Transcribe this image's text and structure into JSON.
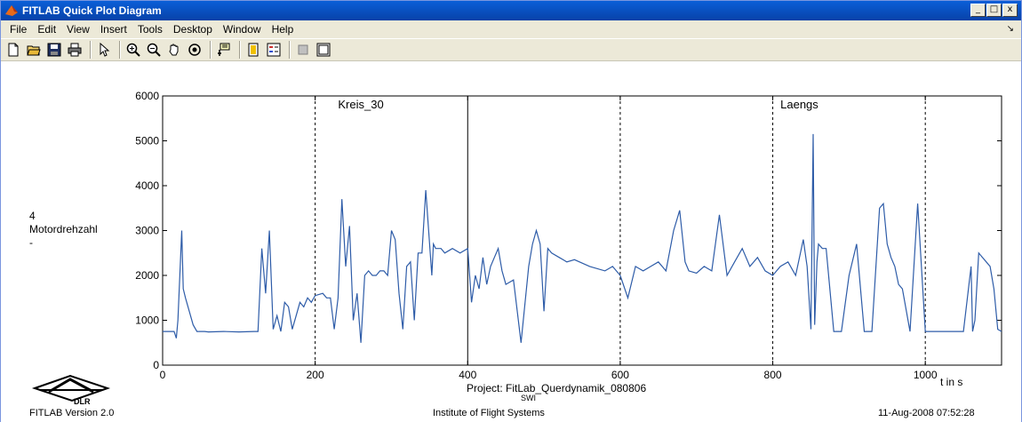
{
  "window": {
    "title": "FITLAB Quick Plot Diagram",
    "controls": {
      "minimize": "_",
      "maximize": "□",
      "close": "x"
    }
  },
  "menubar": {
    "items": [
      "File",
      "Edit",
      "View",
      "Insert",
      "Tools",
      "Desktop",
      "Window",
      "Help"
    ],
    "arrow": "↘"
  },
  "toolbar": {
    "buttons": [
      "new-icon",
      "open-icon",
      "save-icon",
      "print-icon",
      "pointer-icon",
      "zoom-in-icon",
      "zoom-out-icon",
      "pan-icon",
      "rotate-icon",
      "data-cursor-icon",
      "colorbar-icon",
      "legend-icon",
      "hide-plot-tools-icon",
      "show-plot-tools-icon"
    ]
  },
  "chart_data": {
    "type": "line",
    "ylabel": [
      "4",
      "Motordrehzahl",
      "-"
    ],
    "xunit": "t in s",
    "xlim": [
      0,
      1100
    ],
    "ylim": [
      0,
      6000
    ],
    "xticks": [
      0,
      200,
      400,
      600,
      800,
      1000
    ],
    "yticks": [
      0,
      1000,
      2000,
      3000,
      4000,
      5000,
      6000
    ],
    "grid": false,
    "segment_lines_solid": [
      400
    ],
    "segment_lines_dashed": [
      200,
      600,
      800,
      1000
    ],
    "segment_labels": [
      {
        "text": "Kreis_30",
        "x": 230
      },
      {
        "text": "Laengs",
        "x": 810
      }
    ],
    "series": [
      {
        "color": "#2e5ca8",
        "x": [
          0,
          15,
          18,
          20,
          25,
          27,
          30,
          35,
          40,
          45,
          55,
          60,
          80,
          100,
          120,
          125,
          130,
          135,
          140,
          145,
          150,
          155,
          160,
          165,
          170,
          180,
          185,
          190,
          195,
          200,
          210,
          215,
          220,
          225,
          230,
          235,
          240,
          245,
          250,
          255,
          260,
          265,
          270,
          275,
          280,
          285,
          290,
          295,
          300,
          305,
          310,
          315,
          320,
          325,
          330,
          335,
          340,
          345,
          350,
          353,
          355,
          358,
          360,
          365,
          370,
          380,
          390,
          400,
          405,
          410,
          415,
          420,
          425,
          430,
          440,
          445,
          450,
          460,
          470,
          480,
          485,
          490,
          495,
          500,
          505,
          510,
          520,
          530,
          540,
          560,
          580,
          590,
          600,
          610,
          620,
          630,
          640,
          650,
          660,
          670,
          678,
          685,
          690,
          700,
          710,
          720,
          730,
          740,
          750,
          760,
          770,
          780,
          790,
          800,
          810,
          820,
          830,
          840,
          845,
          850,
          853,
          855,
          858,
          860,
          865,
          870,
          880,
          890,
          900,
          910,
          920,
          930,
          940,
          945,
          950,
          955,
          960,
          965,
          970,
          980,
          990,
          1000,
          1010,
          1030,
          1050,
          1060,
          1062,
          1065,
          1070,
          1075,
          1080,
          1085,
          1090,
          1095,
          1100
        ],
        "values": [
          750,
          750,
          600,
          1000,
          3000,
          1700,
          1500,
          1200,
          900,
          750,
          750,
          740,
          750,
          740,
          750,
          750,
          2600,
          1600,
          3000,
          800,
          1100,
          750,
          1400,
          1300,
          800,
          1400,
          1300,
          1500,
          1400,
          1550,
          1600,
          1500,
          1500,
          800,
          1500,
          3700,
          2200,
          3100,
          1000,
          1600,
          500,
          2000,
          2100,
          2000,
          2000,
          2100,
          2100,
          2000,
          3000,
          2800,
          1600,
          800,
          2200,
          2300,
          1000,
          2500,
          2500,
          3900,
          2700,
          2000,
          2700,
          2600,
          2600,
          2600,
          2500,
          2600,
          2500,
          2600,
          1400,
          2000,
          1700,
          2400,
          1800,
          2200,
          2600,
          2100,
          1800,
          1900,
          500,
          2200,
          2700,
          3000,
          2700,
          1200,
          2600,
          2500,
          2400,
          2300,
          2350,
          2200,
          2100,
          2200,
          2000,
          1500,
          2200,
          2100,
          2200,
          2300,
          2100,
          3000,
          3450,
          2300,
          2100,
          2050,
          2200,
          2100,
          3350,
          2000,
          2300,
          2600,
          2200,
          2400,
          2100,
          2000,
          2200,
          2300,
          2000,
          2800,
          2200,
          800,
          5150,
          900,
          2300,
          2700,
          2600,
          2600,
          750,
          750,
          2000,
          2700,
          750,
          750,
          3500,
          3600,
          2700,
          2400,
          2200,
          1800,
          1700,
          750,
          3600,
          750,
          750,
          750,
          750,
          2200,
          750,
          1000,
          2500,
          2400,
          2300,
          2200,
          1700,
          800,
          750
        ],
        "label_points": {
          "x": [
            30,
            1100
          ],
          "y": [
            0,
            0
          ]
        }
      }
    ]
  },
  "figure": {
    "project": "Project: FitLab_Querdynamik_080806",
    "project_sub": "SWI",
    "logo_text": "DLR",
    "version": "FITLAB Version 2.0",
    "institute": "Institute of Flight Systems",
    "timestamp": "11-Aug-2008 07:52:28"
  }
}
